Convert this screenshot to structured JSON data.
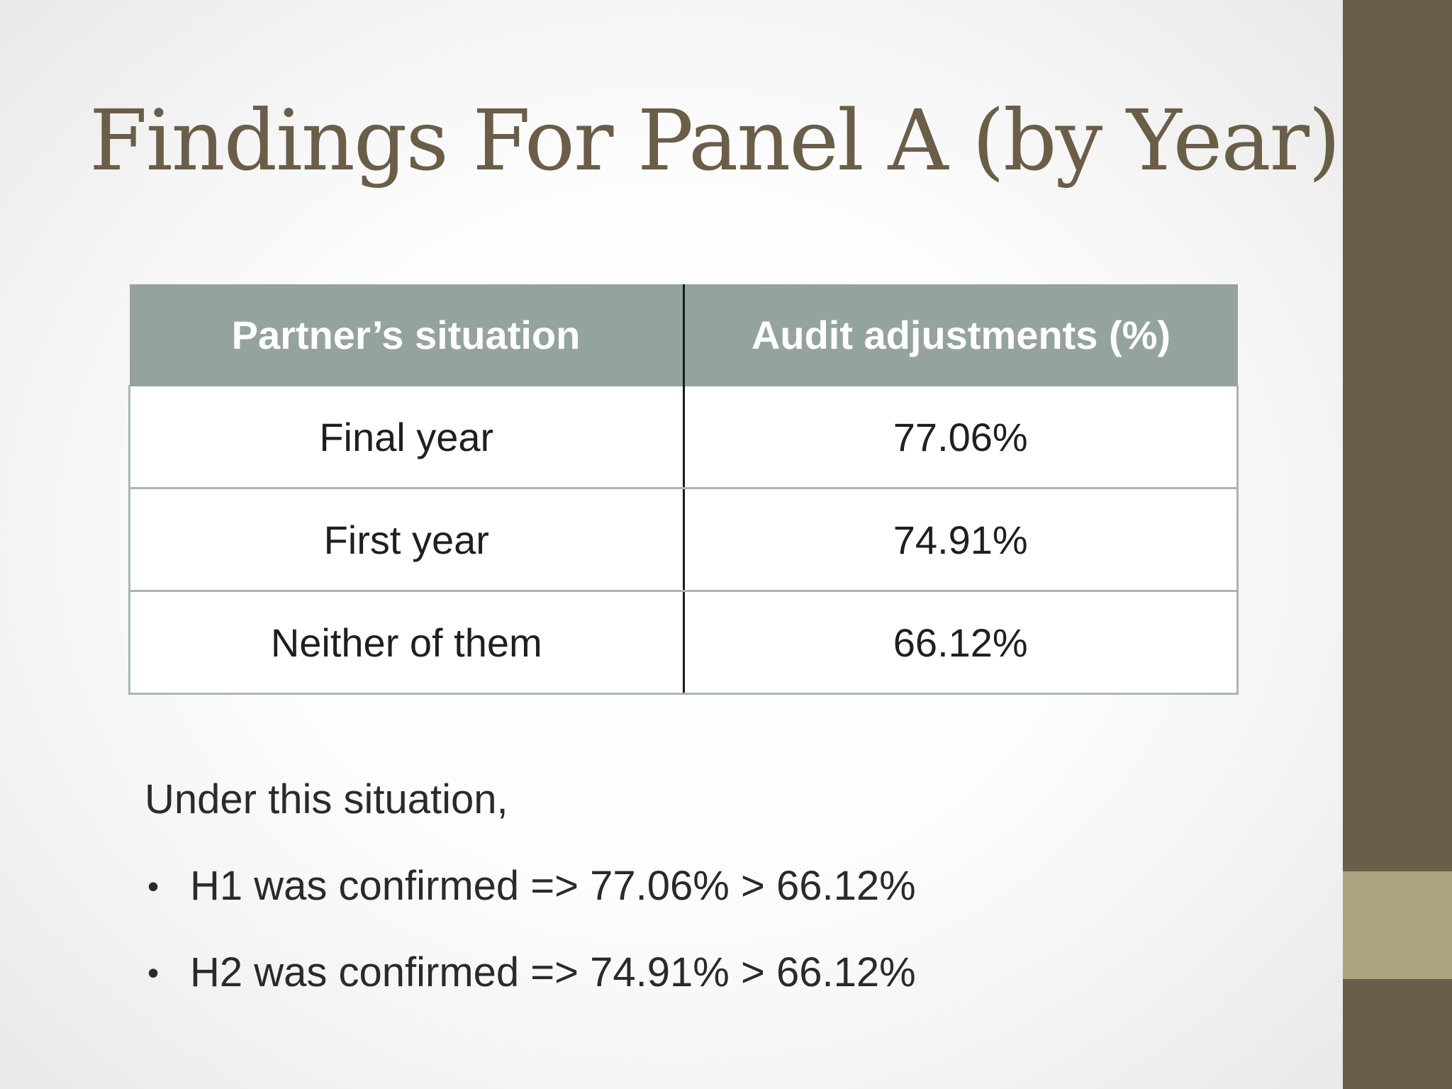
{
  "slide": {
    "title": "Findings For Panel A (by Year)",
    "colors": {
      "title": "#6b5e48",
      "sidebar": "#695e4a",
      "sidebar_accent": "#aba47e",
      "table_header": "#95a39e"
    }
  },
  "table": {
    "headers": [
      "Partner’s situation",
      "Audit adjustments (%)"
    ],
    "rows": [
      [
        "Final year",
        "77.06%"
      ],
      [
        "First year",
        "74.91%"
      ],
      [
        "Neither of them",
        "66.12%"
      ]
    ]
  },
  "notes": {
    "lead": "Under this situation,",
    "bullet_glyph": "•",
    "bullets": [
      "H1 was confirmed => 77.06% > 66.12%",
      "H2 was confirmed => 74.91% > 66.12%"
    ]
  }
}
